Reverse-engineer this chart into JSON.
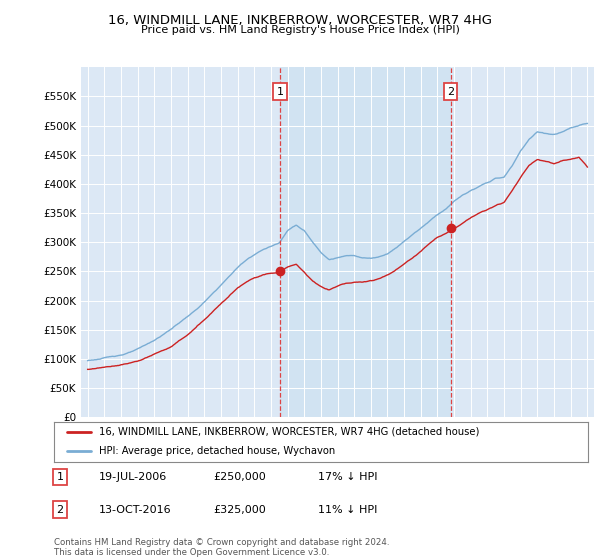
{
  "title": "16, WINDMILL LANE, INKBERROW, WORCESTER, WR7 4HG",
  "subtitle": "Price paid vs. HM Land Registry's House Price Index (HPI)",
  "legend_line1": "16, WINDMILL LANE, INKBERROW, WORCESTER, WR7 4HG (detached house)",
  "legend_line2": "HPI: Average price, detached house, Wychavon",
  "annotation1_label": "1",
  "annotation1_date": "19-JUL-2006",
  "annotation1_price": "£250,000",
  "annotation1_hpi": "17% ↓ HPI",
  "annotation2_label": "2",
  "annotation2_date": "13-OCT-2016",
  "annotation2_price": "£325,000",
  "annotation2_hpi": "11% ↓ HPI",
  "footer": "Contains HM Land Registry data © Crown copyright and database right 2024.\nThis data is licensed under the Open Government Licence v3.0.",
  "hpi_color": "#7aadd4",
  "price_color": "#cc2222",
  "vline_color": "#dd4444",
  "background_color": "#ffffff",
  "plot_bg_color": "#dce8f5",
  "shade_color": "#c8dff0",
  "ylim": [
    0,
    600000
  ],
  "yticks": [
    0,
    50000,
    100000,
    150000,
    200000,
    250000,
    300000,
    350000,
    400000,
    450000,
    500000,
    550000
  ],
  "sale1_year": 2006.544,
  "sale2_year": 2016.786,
  "sale1_price": 250000,
  "sale2_price": 325000,
  "hpi_anchors_x": [
    1995.0,
    1995.5,
    1996.0,
    1996.5,
    1997.0,
    1997.5,
    1998.0,
    1998.5,
    1999.0,
    1999.5,
    2000.0,
    2000.5,
    2001.0,
    2001.5,
    2002.0,
    2002.5,
    2003.0,
    2003.5,
    2004.0,
    2004.5,
    2005.0,
    2005.5,
    2006.0,
    2006.5,
    2007.0,
    2007.5,
    2008.0,
    2008.5,
    2009.0,
    2009.5,
    2010.0,
    2010.5,
    2011.0,
    2011.5,
    2012.0,
    2012.5,
    2013.0,
    2013.5,
    2014.0,
    2014.5,
    2015.0,
    2015.5,
    2016.0,
    2016.5,
    2017.0,
    2017.5,
    2018.0,
    2018.5,
    2019.0,
    2019.5,
    2020.0,
    2020.5,
    2021.0,
    2021.5,
    2022.0,
    2022.5,
    2023.0,
    2023.5,
    2024.0,
    2024.5,
    2025.0
  ],
  "hpi_anchors_y": [
    97000,
    99000,
    101000,
    104000,
    107000,
    111000,
    116000,
    123000,
    131000,
    140000,
    150000,
    161000,
    172000,
    183000,
    196000,
    210000,
    225000,
    240000,
    255000,
    268000,
    278000,
    286000,
    292000,
    299000,
    320000,
    330000,
    320000,
    300000,
    283000,
    272000,
    275000,
    278000,
    278000,
    275000,
    274000,
    277000,
    283000,
    293000,
    305000,
    317000,
    328000,
    340000,
    352000,
    362000,
    375000,
    385000,
    393000,
    399000,
    406000,
    413000,
    415000,
    435000,
    460000,
    480000,
    492000,
    490000,
    488000,
    492000,
    498000,
    502000,
    505000
  ],
  "price_anchors_x": [
    1995.0,
    1995.5,
    1996.0,
    1996.5,
    1997.0,
    1997.5,
    1998.0,
    1998.5,
    1999.0,
    1999.5,
    2000.0,
    2000.5,
    2001.0,
    2001.5,
    2002.0,
    2002.5,
    2003.0,
    2003.5,
    2004.0,
    2004.5,
    2005.0,
    2005.5,
    2006.0,
    2006.5,
    2007.0,
    2007.5,
    2008.0,
    2008.5,
    2009.0,
    2009.5,
    2010.0,
    2010.5,
    2011.0,
    2011.5,
    2012.0,
    2012.5,
    2013.0,
    2013.5,
    2014.0,
    2014.5,
    2015.0,
    2015.5,
    2016.0,
    2016.5,
    2017.0,
    2017.5,
    2018.0,
    2018.5,
    2019.0,
    2019.5,
    2020.0,
    2020.5,
    2021.0,
    2021.5,
    2022.0,
    2022.5,
    2023.0,
    2023.5,
    2024.0,
    2024.5,
    2025.0
  ],
  "price_anchors_y": [
    82000,
    83000,
    85000,
    87000,
    90000,
    93000,
    97000,
    102000,
    108000,
    114000,
    120000,
    130000,
    140000,
    152000,
    165000,
    178000,
    192000,
    208000,
    222000,
    233000,
    241000,
    246000,
    249000,
    251000,
    260000,
    265000,
    252000,
    237000,
    227000,
    222000,
    228000,
    233000,
    235000,
    235000,
    238000,
    242000,
    249000,
    258000,
    268000,
    279000,
    291000,
    305000,
    316000,
    322000,
    330000,
    340000,
    350000,
    357000,
    363000,
    370000,
    375000,
    395000,
    418000,
    438000,
    448000,
    445000,
    440000,
    445000,
    448000,
    452000,
    435000
  ]
}
